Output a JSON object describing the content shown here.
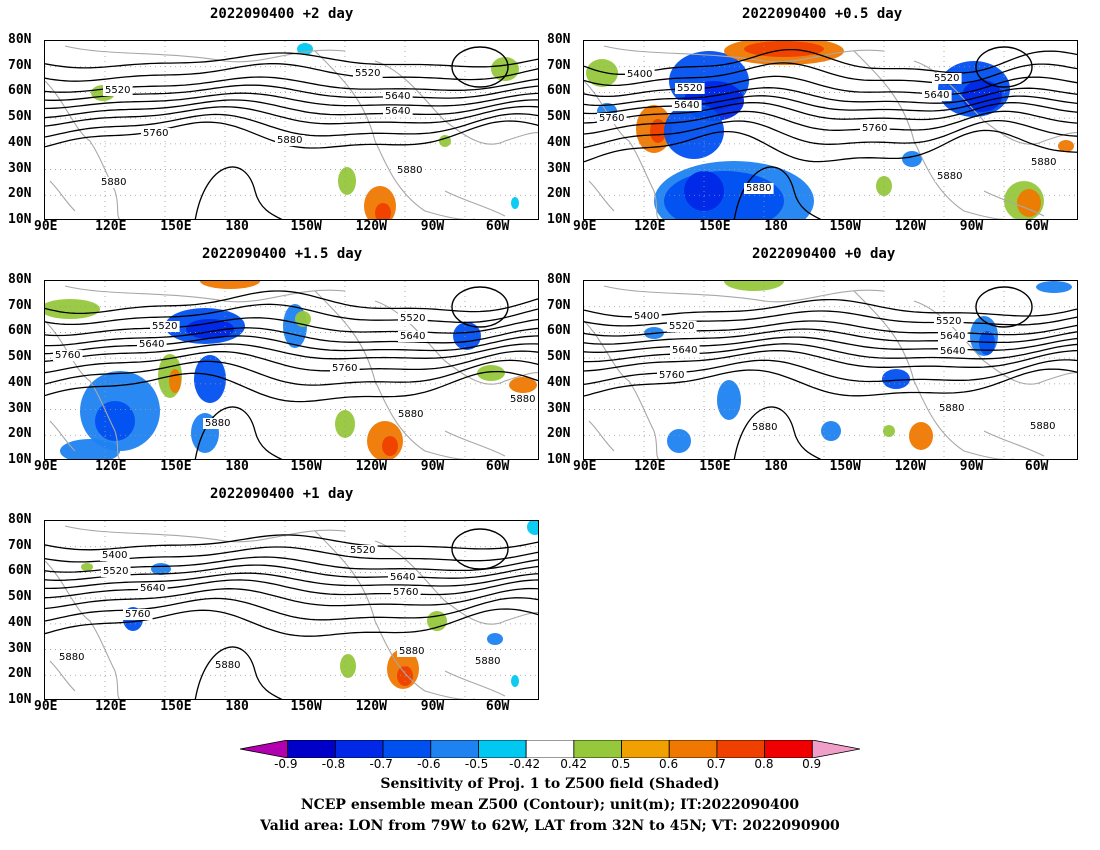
{
  "panels": [
    {
      "title": "2022090400 +2 day"
    },
    {
      "title": "2022090400 +0.5 day"
    },
    {
      "title": "2022090400 +1.5 day"
    },
    {
      "title": "2022090400 +0 day"
    },
    {
      "title": "2022090400 +1 day"
    }
  ],
  "lat_labels": [
    "80N",
    "70N",
    "60N",
    "50N",
    "40N",
    "30N",
    "20N",
    "10N"
  ],
  "lon_labels": [
    "90E",
    "120E",
    "150E",
    "180",
    "150W",
    "120W",
    "90W",
    "60W"
  ],
  "contour_levels": [
    "5400",
    "5520",
    "5640",
    "5760",
    "5880"
  ],
  "colorbar": {
    "ticks": [
      "-0.9",
      "-0.8",
      "-0.7",
      "-0.6",
      "-0.5",
      "-0.42",
      "0.42",
      "0.5",
      "0.6",
      "0.7",
      "0.8",
      "0.9"
    ],
    "colors": [
      "#b000b0",
      "#0000c8",
      "#0028e6",
      "#0050f0",
      "#1e82f0",
      "#00c8f0",
      "#ffffff",
      "#96c83c",
      "#f0a000",
      "#f07800",
      "#f04000",
      "#f00000",
      "#f0a0c8"
    ]
  },
  "captions": {
    "line1": "Sensitivity of Proj. 1 to Z500 field (Shaded)",
    "line2": "NCEP ensemble mean Z500 (Contour); unit(m); IT:2022090400",
    "line3": "Valid area: LON from 79W to 62W, LAT from 32N to 45N; VT: 2022090900"
  }
}
